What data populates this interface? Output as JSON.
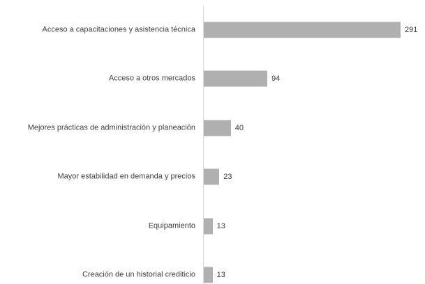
{
  "chart_data": {
    "type": "bar",
    "orientation": "horizontal",
    "categories": [
      "Acceso a capacitaciones y asistencia técnica",
      "Acceso a otros mercados",
      "Mejores prácticas de administración y planeación",
      "Mayor estabilidad en demanda y precios",
      "Equipamiento",
      "Creación de un historial crediticio"
    ],
    "values": [
      291,
      94,
      40,
      23,
      13,
      13
    ],
    "color": "#b0b0b0"
  }
}
